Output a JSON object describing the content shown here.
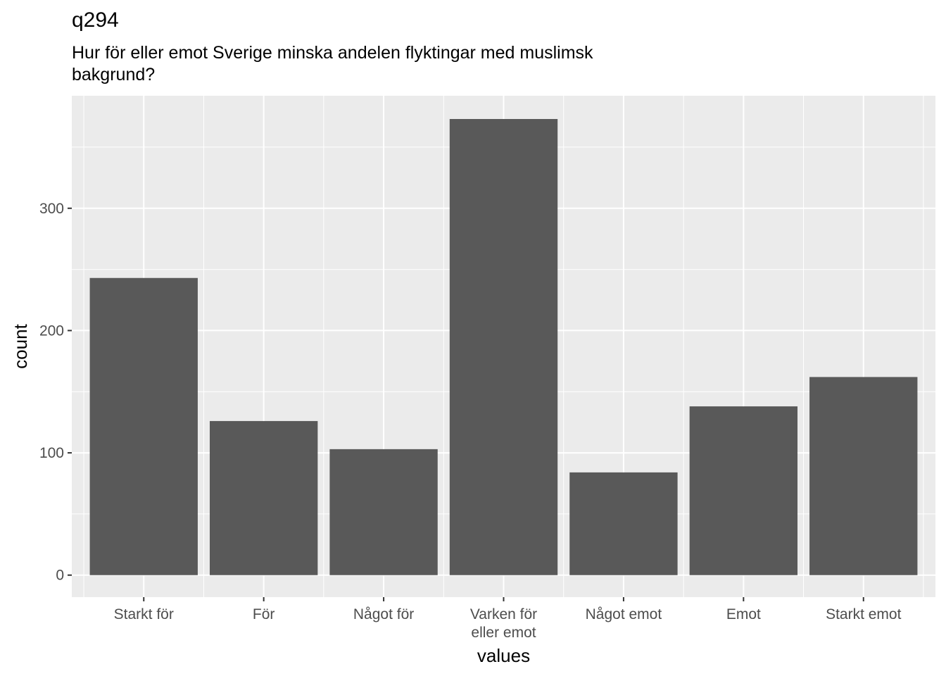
{
  "chart_data": {
    "type": "bar",
    "title": "q294",
    "subtitle": "Hur för eller emot Sverige minska andelen flyktingar med muslimsk\nbakgrund?",
    "xlabel": "values",
    "ylabel": "count",
    "categories": [
      "Starkt för",
      "För",
      "Något för",
      "Varken för\neller emot",
      "Något emot",
      "Emot",
      "Starkt emot"
    ],
    "values": [
      243,
      126,
      103,
      373,
      84,
      138,
      162
    ],
    "ylim": [
      -18,
      392
    ],
    "yticks": [
      0,
      100,
      200,
      300
    ],
    "grid": true,
    "colors": {
      "panel": "#EBEBEB",
      "bar": "#595959",
      "grid": "#FFFFFF",
      "tick_text": "#4D4D4D"
    }
  }
}
